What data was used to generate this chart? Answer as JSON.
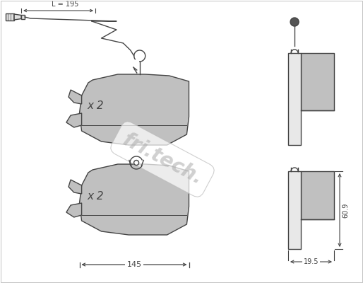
{
  "bg_color": "#ffffff",
  "line_color": "#444444",
  "fill_color": "#c0c0c0",
  "fill_light": "#d8d8d8",
  "fill_dark": "#a8a8a8",
  "text_color": "#333333",
  "label_L": "L = 195",
  "label_145": "145",
  "label_609": "60.9",
  "label_195": "19.5",
  "label_x2_top": "x 2",
  "label_x2_bot": "x 2",
  "watermark": "fri.tech.",
  "fig_width": 5.14,
  "fig_height": 4.0,
  "dpi": 100
}
